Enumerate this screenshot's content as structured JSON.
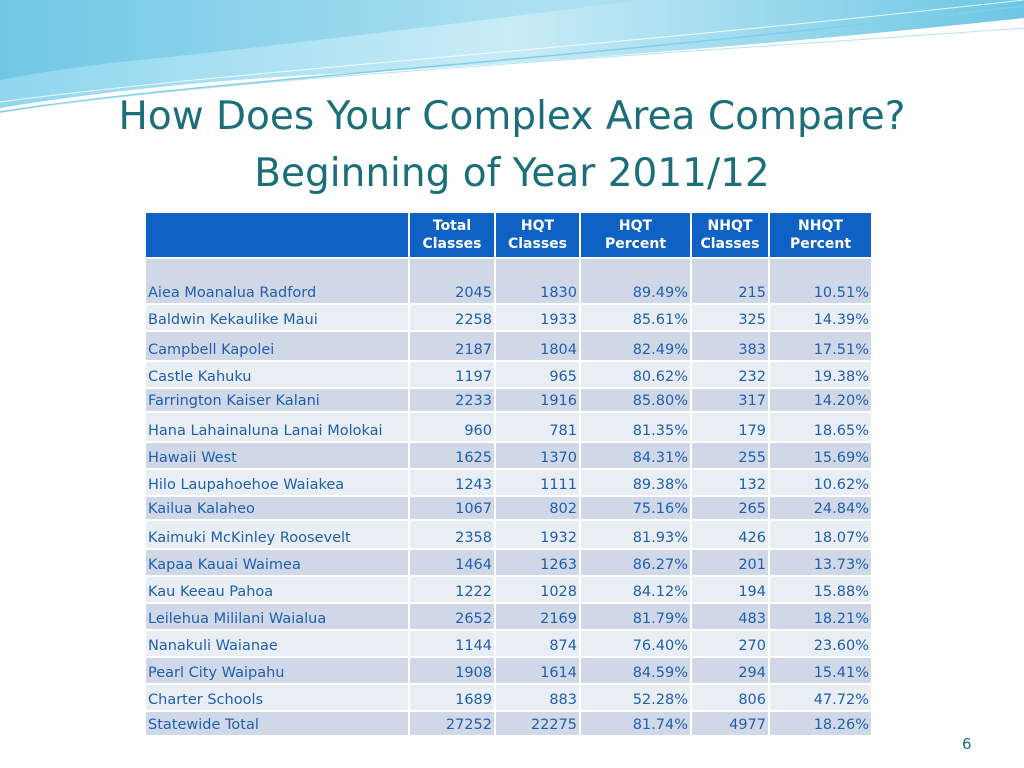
{
  "slide": {
    "title_line1": "How Does Your Complex Area Compare?",
    "title_line2": "Beginning of Year 2011/12",
    "page_number": "6"
  },
  "table": {
    "headers": [
      {
        "line1": "",
        "line2": ""
      },
      {
        "line1": "Total",
        "line2": "Classes"
      },
      {
        "line1": "HQT",
        "line2": "Classes"
      },
      {
        "line1": "HQT",
        "line2": "Percent"
      },
      {
        "line1": "NHQT",
        "line2": "Classes"
      },
      {
        "line1": "NHQT",
        "line2": "Percent"
      }
    ],
    "rows": [
      {
        "name": "Aiea Moanalua Radford",
        "total": "2045",
        "hqt": "1830",
        "hqt_pct": "89.49%",
        "nhqt": "215",
        "nhqt_pct": "10.51%"
      },
      {
        "name": "Baldwin Kekaulike Maui",
        "total": "2258",
        "hqt": "1933",
        "hqt_pct": "85.61%",
        "nhqt": "325",
        "nhqt_pct": "14.39%"
      },
      {
        "name": "Campbell Kapolei",
        "total": "2187",
        "hqt": "1804",
        "hqt_pct": "82.49%",
        "nhqt": "383",
        "nhqt_pct": "17.51%"
      },
      {
        "name": "Castle Kahuku",
        "total": "1197",
        "hqt": "965",
        "hqt_pct": "80.62%",
        "nhqt": "232",
        "nhqt_pct": "19.38%"
      },
      {
        "name": "Farrington Kaiser Kalani",
        "total": "2233",
        "hqt": "1916",
        "hqt_pct": "85.80%",
        "nhqt": "317",
        "nhqt_pct": "14.20%"
      },
      {
        "name": "Hana Lahainaluna Lanai Molokai",
        "total": "960",
        "hqt": "781",
        "hqt_pct": "81.35%",
        "nhqt": "179",
        "nhqt_pct": "18.65%"
      },
      {
        "name": "Hawaii West",
        "total": "1625",
        "hqt": "1370",
        "hqt_pct": "84.31%",
        "nhqt": "255",
        "nhqt_pct": "15.69%"
      },
      {
        "name": "Hilo Laupahoehoe Waiakea",
        "total": "1243",
        "hqt": "1111",
        "hqt_pct": "89.38%",
        "nhqt": "132",
        "nhqt_pct": "10.62%"
      },
      {
        "name": "Kailua Kalaheo",
        "total": "1067",
        "hqt": "802",
        "hqt_pct": "75.16%",
        "nhqt": "265",
        "nhqt_pct": "24.84%"
      },
      {
        "name": "Kaimuki McKinley Roosevelt",
        "total": "2358",
        "hqt": "1932",
        "hqt_pct": "81.93%",
        "nhqt": "426",
        "nhqt_pct": "18.07%"
      },
      {
        "name": "Kapaa Kauai Waimea",
        "total": "1464",
        "hqt": "1263",
        "hqt_pct": "86.27%",
        "nhqt": "201",
        "nhqt_pct": "13.73%"
      },
      {
        "name": "Kau Keeau Pahoa",
        "total": "1222",
        "hqt": "1028",
        "hqt_pct": "84.12%",
        "nhqt": "194",
        "nhqt_pct": "15.88%"
      },
      {
        "name": "Leilehua Mililani Waialua",
        "total": "2652",
        "hqt": "2169",
        "hqt_pct": "81.79%",
        "nhqt": "483",
        "nhqt_pct": "18.21%"
      },
      {
        "name": "Nanakuli Waianae",
        "total": "1144",
        "hqt": "874",
        "hqt_pct": "76.40%",
        "nhqt": "270",
        "nhqt_pct": "23.60%"
      },
      {
        "name": "Pearl City Waipahu",
        "total": "1908",
        "hqt": "1614",
        "hqt_pct": "84.59%",
        "nhqt": "294",
        "nhqt_pct": "15.41%"
      },
      {
        "name": "Charter Schools",
        "total": "1689",
        "hqt": "883",
        "hqt_pct": "52.28%",
        "nhqt": "806",
        "nhqt_pct": "47.72%"
      },
      {
        "name": "Statewide Total",
        "total": "27252",
        "hqt": "22275",
        "hqt_pct": "81.74%",
        "nhqt": "4977",
        "nhqt_pct": "18.26%"
      }
    ]
  },
  "colors": {
    "title": "#1b6e7a",
    "header_bg": "#0f62c4",
    "row_odd": "#d0d8e8",
    "row_even": "#e9edf4",
    "cell_text": "#1f5fae"
  }
}
